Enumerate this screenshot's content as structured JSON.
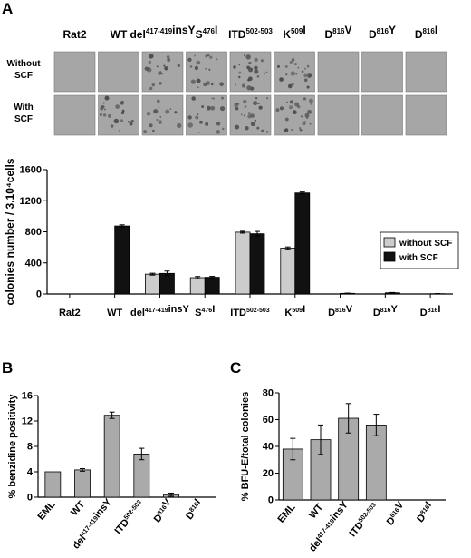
{
  "panels": {
    "a": "A",
    "b": "B",
    "c": "C"
  },
  "dish_grid": {
    "columns": [
      "Rat2",
      "WT",
      "del417-419insY",
      "S476I",
      "ITD502-503",
      "K509I",
      "D816V",
      "D816Y",
      "D816I"
    ],
    "rows": [
      {
        "label_line1": "Without",
        "label_line2": "SCF",
        "density": [
          0,
          0,
          0.55,
          0.6,
          0.75,
          0.7,
          0,
          0,
          0
        ]
      },
      {
        "label_line1": "With",
        "label_line2": "SCF",
        "density": [
          0,
          0.7,
          0.45,
          0.6,
          0.75,
          0.85,
          0,
          0,
          0
        ]
      }
    ]
  },
  "colors": {
    "without_scf": "#cccccc",
    "with_scf": "#111111",
    "single": "#aaaaaa",
    "dish_bg": "#a6a6a6",
    "colony": "#4a4a4a"
  },
  "chart_data": [
    {
      "panel": "A",
      "type": "bar",
      "ylabel": "colonies number / 3.10⁴cells",
      "ylim": [
        0,
        1600
      ],
      "yticks": [
        0,
        400,
        800,
        1200,
        1600
      ],
      "legend_position": "right",
      "categories": [
        "Rat2",
        "WT",
        "del417-419insY",
        "S476I",
        "ITD502-503",
        "K509I",
        "D816V",
        "D816Y",
        "D816I"
      ],
      "series": [
        {
          "name": "without SCF",
          "values": [
            0,
            0,
            255,
            210,
            795,
            590,
            0,
            0,
            0
          ],
          "errors": [
            0,
            0,
            12,
            15,
            12,
            15,
            0,
            0,
            0
          ]
        },
        {
          "name": "with SCF",
          "values": [
            0,
            875,
            265,
            215,
            775,
            1300,
            8,
            15,
            3
          ],
          "errors": [
            0,
            15,
            30,
            12,
            30,
            12,
            3,
            4,
            2
          ]
        }
      ]
    },
    {
      "panel": "B",
      "type": "bar",
      "ylabel": "% benzidine positivity",
      "ylim": [
        0,
        16
      ],
      "yticks": [
        0,
        4,
        8,
        12,
        16
      ],
      "categories": [
        "EML",
        "WT",
        "del417-419insY",
        "ITD502-503",
        "D816V",
        "D816I"
      ],
      "values": [
        4.0,
        4.3,
        12.9,
        6.8,
        0.4,
        0.0
      ],
      "errors": [
        0,
        0.2,
        0.5,
        0.9,
        0.25,
        0
      ]
    },
    {
      "panel": "C",
      "type": "bar",
      "ylabel": "% BFU-E/total colonies",
      "ylim": [
        0,
        80
      ],
      "yticks": [
        0,
        20,
        40,
        60,
        80
      ],
      "categories": [
        "EML",
        "WT",
        "del417-419insY",
        "ITD502-503",
        "D816V",
        "D816I"
      ],
      "values": [
        38,
        45,
        61,
        56,
        0,
        0
      ],
      "errors": [
        8,
        11,
        11,
        8,
        0,
        0
      ]
    }
  ]
}
